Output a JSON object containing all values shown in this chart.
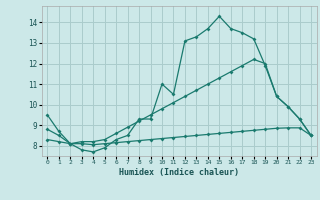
{
  "xlabel": "Humidex (Indice chaleur)",
  "ylabel": "",
  "background_color": "#cce8e8",
  "grid_color": "#aacccc",
  "line_color": "#1a7a6e",
  "xlim": [
    -0.5,
    23.5
  ],
  "ylim": [
    7.5,
    14.8
  ],
  "xticks": [
    0,
    1,
    2,
    3,
    4,
    5,
    6,
    7,
    8,
    9,
    10,
    11,
    12,
    13,
    14,
    15,
    16,
    17,
    18,
    19,
    20,
    21,
    22,
    23
  ],
  "yticks": [
    8,
    9,
    10,
    11,
    12,
    13,
    14
  ],
  "line1_x": [
    0,
    1,
    2,
    3,
    4,
    5,
    6,
    7,
    8,
    9,
    10,
    11,
    12,
    13,
    14,
    15,
    16,
    17,
    18,
    19,
    20,
    21,
    22,
    23
  ],
  "line1_y": [
    9.5,
    8.7,
    8.1,
    7.8,
    7.7,
    7.9,
    8.3,
    8.5,
    9.3,
    9.3,
    11.0,
    10.5,
    13.1,
    13.3,
    13.7,
    14.3,
    13.7,
    13.5,
    13.2,
    11.9,
    10.4,
    9.9,
    9.3,
    8.5
  ],
  "line2_x": [
    0,
    1,
    2,
    3,
    4,
    5,
    6,
    7,
    8,
    9,
    10,
    11,
    12,
    13,
    14,
    15,
    16,
    17,
    18,
    19,
    20,
    21,
    22,
    23
  ],
  "line2_y": [
    8.3,
    8.2,
    8.1,
    8.1,
    8.05,
    8.1,
    8.15,
    8.2,
    8.25,
    8.3,
    8.35,
    8.4,
    8.45,
    8.5,
    8.55,
    8.6,
    8.65,
    8.7,
    8.75,
    8.8,
    8.85,
    8.87,
    8.87,
    8.5
  ],
  "line3_x": [
    0,
    1,
    2,
    3,
    4,
    5,
    6,
    7,
    8,
    9,
    10,
    11,
    12,
    13,
    14,
    15,
    16,
    17,
    18,
    19,
    20,
    21,
    22,
    23
  ],
  "line3_y": [
    8.8,
    8.5,
    8.1,
    8.2,
    8.2,
    8.3,
    8.6,
    8.9,
    9.2,
    9.5,
    9.8,
    10.1,
    10.4,
    10.7,
    11.0,
    11.3,
    11.6,
    11.9,
    12.2,
    12.0,
    10.4,
    9.9,
    9.3,
    8.5
  ]
}
